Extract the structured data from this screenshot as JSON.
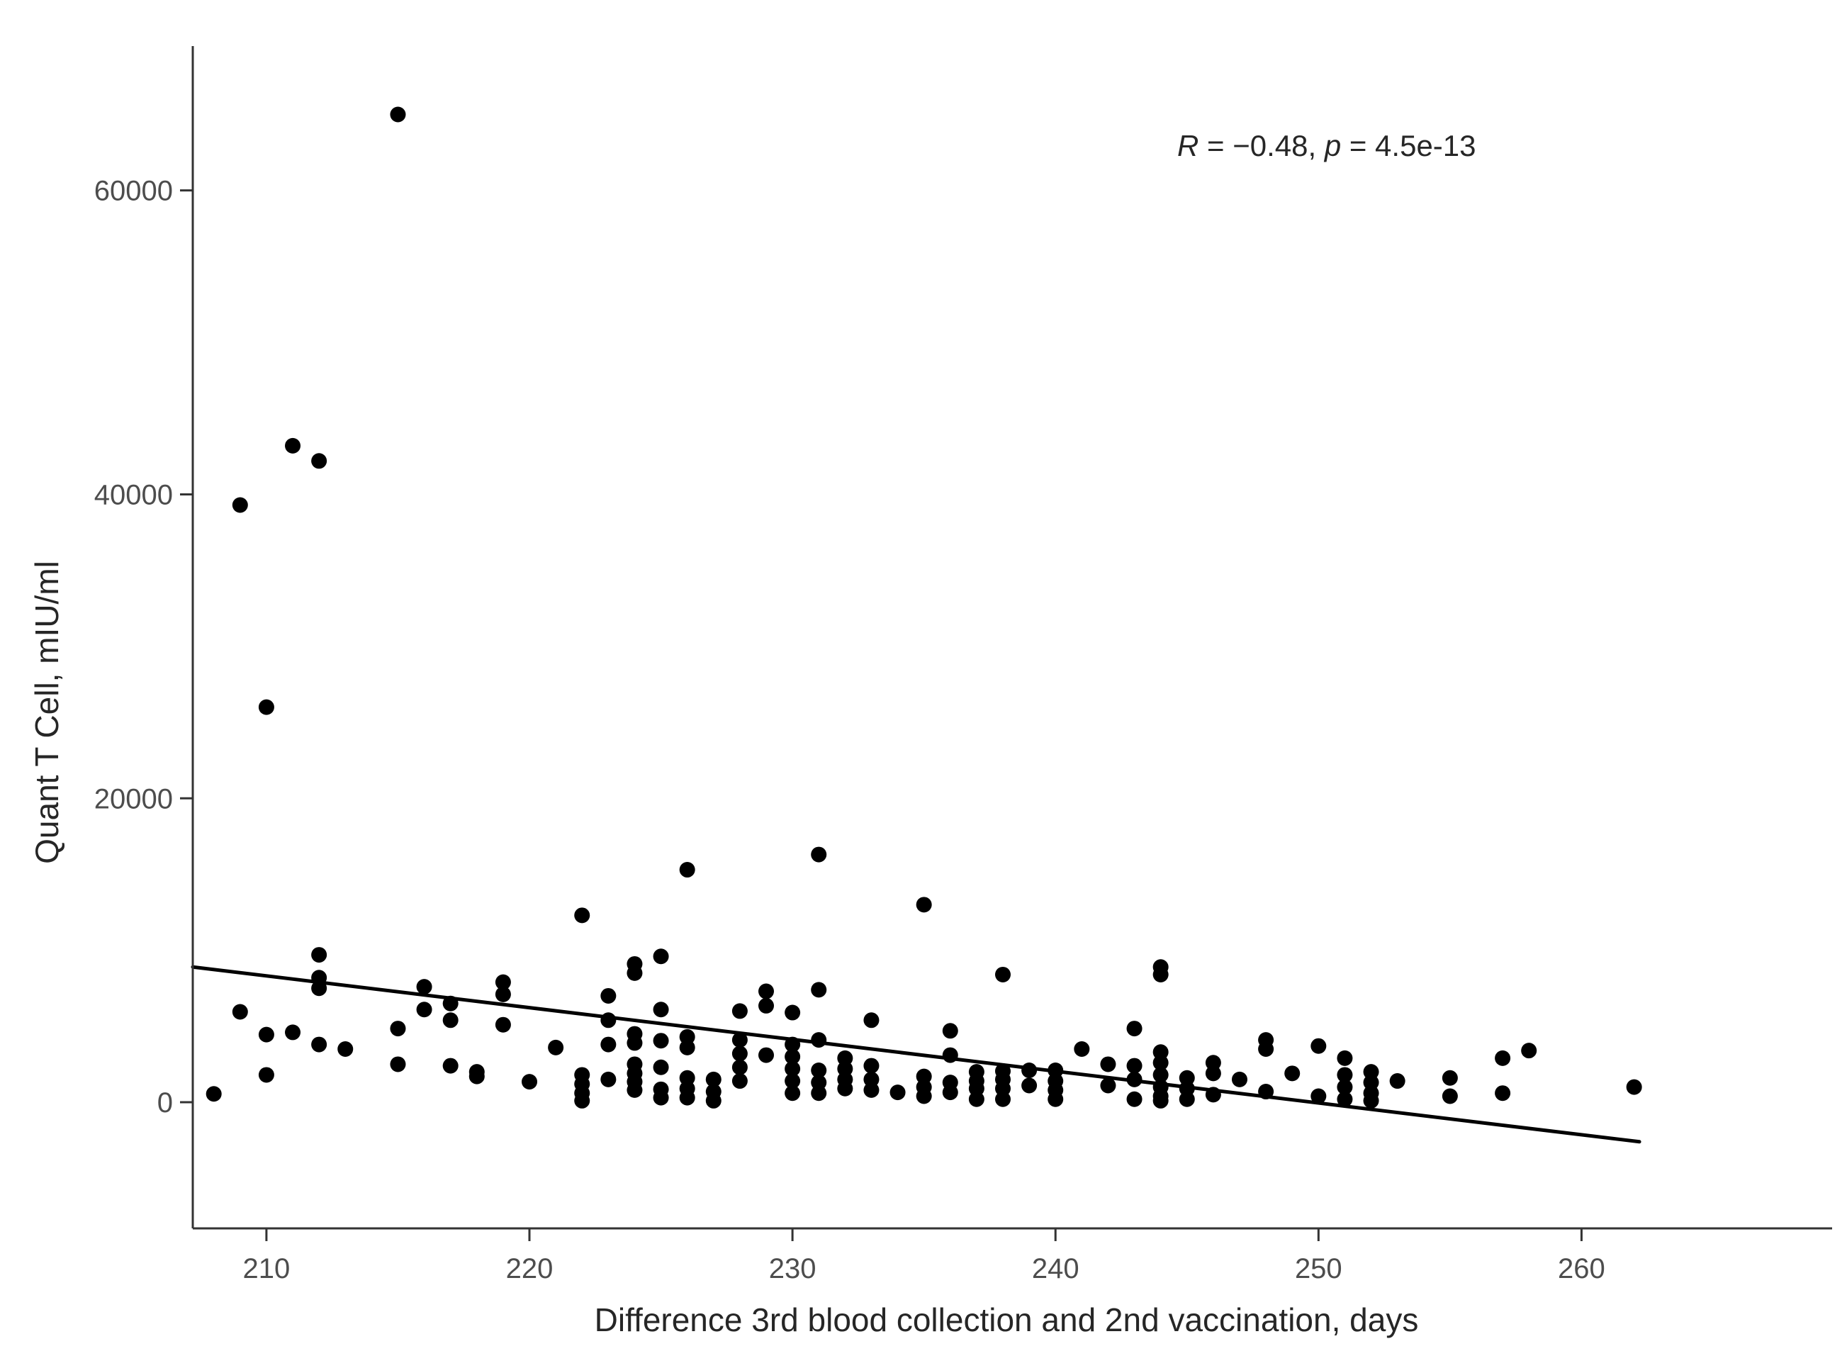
{
  "chart_data": {
    "type": "scatter",
    "title": "",
    "xlabel": "Difference 3rd blood collection and 2nd vaccination, days",
    "ylabel": "Quant T Cell, mIU/ml",
    "x_ticks": [
      "210",
      "220",
      "230",
      "240",
      "250",
      "260"
    ],
    "x_tick_values": [
      210,
      220,
      230,
      240,
      250,
      260
    ],
    "y_ticks": [
      "0",
      "20000",
      "40000",
      "60000"
    ],
    "y_tick_values": [
      0,
      20000,
      40000,
      60000
    ],
    "xlim": [
      207.2,
      268.8
    ],
    "ylim": [
      -8300,
      69500
    ],
    "grid": false,
    "legend": "none",
    "annotation": {
      "full_text": "R = −0.48, p = 4.5e-13",
      "segments": [
        {
          "text": "R",
          "italic": true
        },
        {
          "text": " = −0.48, ",
          "italic": false
        },
        {
          "text": "p",
          "italic": true
        },
        {
          "text": " = 4.5e-13",
          "italic": false
        }
      ]
    },
    "trend": {
      "x": [
        207.2,
        262.2
      ],
      "y": [
        8900,
        -2600
      ]
    },
    "colors": {
      "point": "#000000",
      "trend_line": "#000000",
      "axis_line": "#333333",
      "tick_label": "#4d4d4d",
      "axis_title": "#262626",
      "background": "#ffffff"
    },
    "points": [
      [
        208,
        550
      ],
      [
        209,
        39300
      ],
      [
        209,
        5950
      ],
      [
        210,
        26000
      ],
      [
        210,
        4450
      ],
      [
        210,
        1800
      ],
      [
        211,
        43200
      ],
      [
        211,
        4600
      ],
      [
        212,
        42200
      ],
      [
        212,
        9700
      ],
      [
        212,
        8200
      ],
      [
        212,
        7500
      ],
      [
        212,
        3800
      ],
      [
        213,
        3500
      ],
      [
        215,
        65000
      ],
      [
        215,
        4850
      ],
      [
        215,
        2500
      ],
      [
        216,
        7600
      ],
      [
        216,
        6100
      ],
      [
        217,
        6500
      ],
      [
        217,
        5400
      ],
      [
        217,
        2400
      ],
      [
        218,
        2000
      ],
      [
        218,
        1700
      ],
      [
        219,
        7900
      ],
      [
        219,
        7100
      ],
      [
        219,
        5100
      ],
      [
        220,
        1350
      ],
      [
        221,
        3600
      ],
      [
        222,
        12300
      ],
      [
        222,
        1800
      ],
      [
        222,
        1200
      ],
      [
        222,
        600
      ],
      [
        222,
        100
      ],
      [
        223,
        7000
      ],
      [
        223,
        5400
      ],
      [
        223,
        3800
      ],
      [
        223,
        1500
      ],
      [
        224,
        9100
      ],
      [
        224,
        8500
      ],
      [
        224,
        4500
      ],
      [
        224,
        3900
      ],
      [
        224,
        2500
      ],
      [
        224,
        1900
      ],
      [
        224,
        1350
      ],
      [
        224,
        800
      ],
      [
        225,
        9600
      ],
      [
        225,
        6100
      ],
      [
        225,
        4050
      ],
      [
        225,
        2300
      ],
      [
        225,
        850
      ],
      [
        225,
        300
      ],
      [
        226,
        15300
      ],
      [
        226,
        4300
      ],
      [
        226,
        3600
      ],
      [
        226,
        1600
      ],
      [
        226,
        900
      ],
      [
        226,
        300
      ],
      [
        227,
        1500
      ],
      [
        227,
        700
      ],
      [
        227,
        100
      ],
      [
        228,
        6000
      ],
      [
        228,
        4100
      ],
      [
        228,
        3200
      ],
      [
        228,
        2300
      ],
      [
        228,
        1400
      ],
      [
        229,
        7300
      ],
      [
        229,
        6350
      ],
      [
        229,
        3100
      ],
      [
        230,
        5900
      ],
      [
        230,
        3800
      ],
      [
        230,
        3000
      ],
      [
        230,
        2200
      ],
      [
        230,
        1400
      ],
      [
        230,
        600
      ],
      [
        231,
        16300
      ],
      [
        231,
        7400
      ],
      [
        231,
        4100
      ],
      [
        231,
        2100
      ],
      [
        231,
        1300
      ],
      [
        231,
        600
      ],
      [
        232,
        2900
      ],
      [
        232,
        2200
      ],
      [
        232,
        1500
      ],
      [
        232,
        900
      ],
      [
        233,
        5400
      ],
      [
        233,
        2400
      ],
      [
        233,
        1500
      ],
      [
        233,
        800
      ],
      [
        234,
        650
      ],
      [
        235,
        13000
      ],
      [
        235,
        1700
      ],
      [
        235,
        1000
      ],
      [
        235,
        400
      ],
      [
        236,
        4700
      ],
      [
        236,
        3100
      ],
      [
        236,
        1300
      ],
      [
        236,
        650
      ],
      [
        237,
        2000
      ],
      [
        237,
        1400
      ],
      [
        237,
        900
      ],
      [
        237,
        200
      ],
      [
        238,
        8400
      ],
      [
        238,
        2050
      ],
      [
        238,
        1500
      ],
      [
        238,
        900
      ],
      [
        238,
        200
      ],
      [
        239,
        2100
      ],
      [
        239,
        1100
      ],
      [
        240,
        2100
      ],
      [
        240,
        1400
      ],
      [
        240,
        800
      ],
      [
        240,
        200
      ],
      [
        241,
        3500
      ],
      [
        242,
        2500
      ],
      [
        242,
        1100
      ],
      [
        243,
        4850
      ],
      [
        243,
        2400
      ],
      [
        243,
        1500
      ],
      [
        243,
        200
      ],
      [
        244,
        8900
      ],
      [
        244,
        8400
      ],
      [
        244,
        3300
      ],
      [
        244,
        2600
      ],
      [
        244,
        1800
      ],
      [
        244,
        1000
      ],
      [
        244,
        400
      ],
      [
        244,
        100
      ],
      [
        245,
        1600
      ],
      [
        245,
        900
      ],
      [
        245,
        200
      ],
      [
        246,
        2600
      ],
      [
        246,
        1900
      ],
      [
        246,
        500
      ],
      [
        247,
        1500
      ],
      [
        248,
        4100
      ],
      [
        248,
        3500
      ],
      [
        248,
        700
      ],
      [
        249,
        1900
      ],
      [
        250,
        3700
      ],
      [
        250,
        400
      ],
      [
        251,
        2900
      ],
      [
        251,
        1800
      ],
      [
        251,
        1000
      ],
      [
        251,
        200
      ],
      [
        252,
        2000
      ],
      [
        252,
        1300
      ],
      [
        252,
        600
      ],
      [
        252,
        100
      ],
      [
        253,
        1400
      ],
      [
        255,
        1600
      ],
      [
        255,
        400
      ],
      [
        257,
        2900
      ],
      [
        257,
        600
      ],
      [
        258,
        3400
      ],
      [
        262,
        1000
      ]
    ]
  }
}
